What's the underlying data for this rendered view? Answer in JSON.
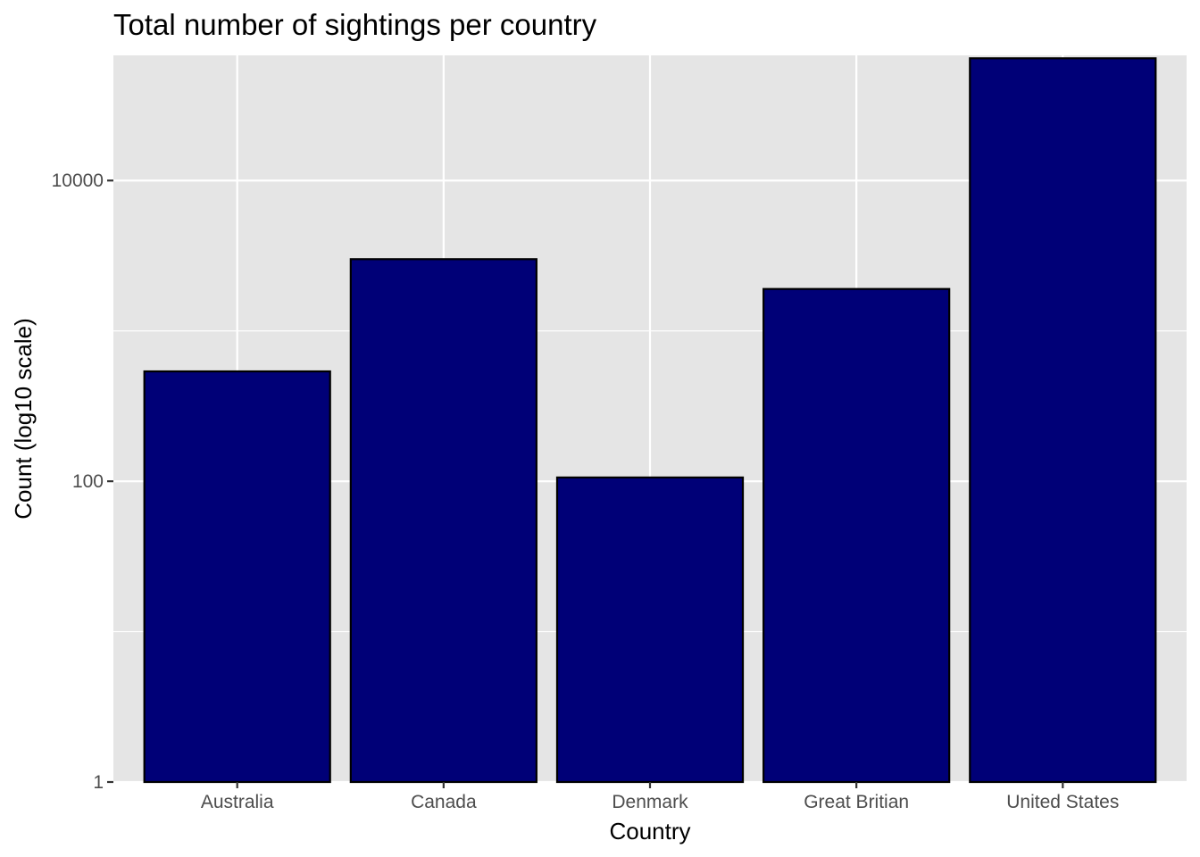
{
  "chart_data": {
    "type": "bar",
    "title": "Total number of sightings per country",
    "xlabel": "Country",
    "ylabel": "Count (log10 scale)",
    "y_scale": "log10",
    "ylim": [
      1,
      68000
    ],
    "y_ticks": [
      {
        "value": 1,
        "label": "1"
      },
      {
        "value": 100,
        "label": "100"
      },
      {
        "value": 10000,
        "label": "10000"
      }
    ],
    "categories": [
      "Australia",
      "Canada",
      "Denmark",
      "Great Britian",
      "United States"
    ],
    "values": [
      538,
      3000,
      106,
      1900,
      65000
    ],
    "grid": true,
    "legend": "none",
    "colors": {
      "bar_fill": "#000077",
      "bar_outline": "#000000",
      "panel_background": "#e5e5e5",
      "grid_major": "#ffffff",
      "tick_label": "#4d4d4d"
    }
  }
}
